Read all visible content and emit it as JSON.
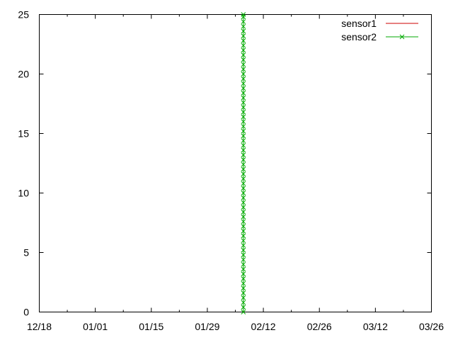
{
  "chart_data": {
    "type": "line",
    "x_axis": {
      "kind": "date",
      "range": [
        "12/18",
        "03/26"
      ],
      "ticks": [
        "12/18",
        "01/01",
        "01/15",
        "01/29",
        "02/12",
        "02/26",
        "03/12",
        "03/26"
      ]
    },
    "y_axis": {
      "range": [
        0,
        25
      ],
      "ticks": [
        0,
        5,
        10,
        15,
        20,
        25
      ]
    },
    "grid": false,
    "legend": {
      "placement": "top-right"
    },
    "series": [
      {
        "name": "sensor1",
        "color": "#cc0000",
        "marker": "none",
        "points": []
      },
      {
        "name": "sensor2",
        "color": "#00aa00",
        "marker": "x",
        "x": "02/07",
        "y": [
          0,
          0.4,
          0.8,
          1.2,
          1.6,
          2,
          2.4,
          2.8,
          3.2,
          3.6,
          4,
          4.4,
          4.8,
          5.2,
          5.6,
          6,
          6.4,
          6.8,
          7.2,
          7.6,
          8,
          8.4,
          8.8,
          9.2,
          9.6,
          10,
          10.4,
          10.8,
          11.2,
          11.6,
          12,
          12.4,
          12.8,
          13.2,
          13.6,
          14,
          14.4,
          14.8,
          15.2,
          15.6,
          16,
          16.4,
          16.8,
          17.2,
          17.6,
          18,
          18.4,
          18.8,
          19.2,
          19.6,
          20,
          20.4,
          20.8,
          21.2,
          21.6,
          22,
          22.4,
          22.8,
          23.2,
          23.6,
          24,
          24.4,
          24.8,
          25
        ]
      }
    ]
  }
}
